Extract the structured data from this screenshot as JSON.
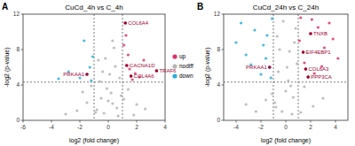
{
  "chart_data": [
    {
      "type": "scatter",
      "panel": "A",
      "title": "CuCd_4h vs C_4h",
      "x_label": "log2 (fold change)",
      "y_label": "-log2 (p-value)",
      "xlim": [
        -6,
        4
      ],
      "ylim": [
        0,
        12
      ],
      "xticks": [
        -6,
        -4,
        -2,
        0,
        2,
        4
      ],
      "yticks": [
        0,
        4,
        8,
        12
      ],
      "legend": "right",
      "thresholds": {
        "x": [
          -1,
          1
        ],
        "y": 4.32
      },
      "series": [
        {
          "name": "up",
          "color": "#e0306a",
          "marker": "circle",
          "x": [
            1.2,
            1.3,
            1.5,
            1.6,
            1.4,
            1.9,
            2.2,
            1.1,
            1.7,
            3.4,
            1.25,
            2.5
          ],
          "values": [
            11.0,
            6.2,
            5.8,
            5.0,
            7.4,
            5.3,
            4.9,
            8.5,
            4.6,
            5.6,
            9.6,
            6.8
          ]
        },
        {
          "name": "nodiff",
          "color": "#b3b3b3",
          "marker": "circle",
          "x": [
            -0.8,
            -0.5,
            -0.3,
            -0.1,
            0.1,
            0.3,
            0.5,
            0.7,
            0.9,
            -0.6,
            -0.2,
            0.2,
            0.6,
            -0.9,
            0.4,
            -1.5,
            -2.2,
            1.4,
            2.0,
            1.8,
            -1.2,
            -0.4,
            0.0,
            0.8,
            2.6,
            -3.0,
            -0.7,
            0.3,
            1.1,
            -1.8
          ],
          "values": [
            1.2,
            2.5,
            0.8,
            3.6,
            5.2,
            1.9,
            6.1,
            0.5,
            2.8,
            4.4,
            7.0,
            3.1,
            1.4,
            0.9,
            8.2,
            2.0,
            1.1,
            3.5,
            1.8,
            0.6,
            3.9,
            5.5,
            2.2,
            4.8,
            1.3,
            0.7,
            6.8,
            9.0,
            2.4,
            3.2
          ]
        },
        {
          "name": "down",
          "color": "#27aee0",
          "marker": "circle",
          "x": [
            -1.5,
            -1.3,
            -2.0,
            -1.1,
            -2.8,
            -1.7,
            -1.2,
            -3.5
          ],
          "values": [
            5.2,
            6.0,
            4.8,
            7.2,
            5.5,
            9.0,
            4.5,
            4.7
          ]
        }
      ],
      "annotations": [
        {
          "text": "COL6A4",
          "x": 1.2,
          "y": 11.0
        },
        {
          "text": "CACNA1D",
          "x": 1.3,
          "y": 6.2
        },
        {
          "text": "COL4A6",
          "x": 1.6,
          "y": 5.0
        },
        {
          "text": "TRAF6",
          "x": 3.4,
          "y": 5.6
        },
        {
          "text": "PRKAA1",
          "x": -1.5,
          "y": 5.2
        }
      ]
    },
    {
      "type": "scatter",
      "panel": "B",
      "title": "CuCd_24h vs C_24h",
      "x_label": "log2 (fold change)",
      "y_label": "-log2 (p-value)",
      "xlim": [
        -5,
        5
      ],
      "ylim": [
        0,
        12
      ],
      "xticks": [
        -4,
        -2,
        0,
        2,
        4
      ],
      "yticks": [
        0,
        4,
        8,
        12
      ],
      "thresholds": {
        "x": [
          -1,
          1
        ],
        "y": 4.32
      },
      "series": [
        {
          "name": "up",
          "color": "#e0306a",
          "marker": "circle",
          "x": [
            1.2,
            1.5,
            2.0,
            2.6,
            3.1,
            3.8,
            1.8,
            2.3,
            1.4,
            2.9,
            3.5,
            1.1,
            4.2,
            2.1,
            1.6
          ],
          "values": [
            11.6,
            6.5,
            9.8,
            10.5,
            8.2,
            9.2,
            4.9,
            5.3,
            7.7,
            6.1,
            11.0,
            9.0,
            7.0,
            11.4,
            5.8
          ]
        },
        {
          "name": "nodiff",
          "color": "#b3b3b3",
          "marker": "circle",
          "x": [
            -0.9,
            -0.6,
            -0.3,
            0.0,
            0.3,
            0.6,
            0.9,
            -0.7,
            -0.2,
            0.2,
            0.5,
            0.8,
            -0.5,
            0.1,
            -0.8,
            0.4,
            -1.6,
            -2.4,
            1.5,
            2.2,
            -1.1,
            1.2,
            3.0,
            -3.2,
            0.7
          ],
          "values": [
            2.0,
            5.5,
            1.0,
            3.3,
            7.8,
            2.6,
            6.4,
            9.5,
            11.2,
            4.5,
            0.7,
            10.4,
            8.0,
            6.0,
            1.5,
            3.9,
            2.3,
            1.0,
            3.8,
            1.6,
            3.0,
            0.9,
            2.5,
            1.8,
            8.8
          ]
        },
        {
          "name": "down",
          "color": "#27aee0",
          "marker": "circle",
          "x": [
            -1.3,
            -1.8,
            -2.5,
            -3.2,
            -1.1,
            -2.0,
            -4.0,
            -1.5,
            -2.8,
            -1.2,
            -3.6,
            -1.6
          ],
          "values": [
            6.0,
            8.5,
            10.2,
            7.4,
            11.5,
            5.2,
            8.8,
            9.6,
            6.3,
            4.8,
            11.0,
            7.0
          ]
        }
      ],
      "annotations": [
        {
          "text": "TNXB",
          "x": 2.0,
          "y": 9.8
        },
        {
          "text": "EIF4EBP1",
          "x": 1.4,
          "y": 7.7
        },
        {
          "text": "COL6A3",
          "x": 1.6,
          "y": 5.8
        },
        {
          "text": "PPP3CA",
          "x": 1.8,
          "y": 4.9
        },
        {
          "text": "PRKAA1",
          "x": -1.3,
          "y": 6.0
        }
      ]
    }
  ]
}
